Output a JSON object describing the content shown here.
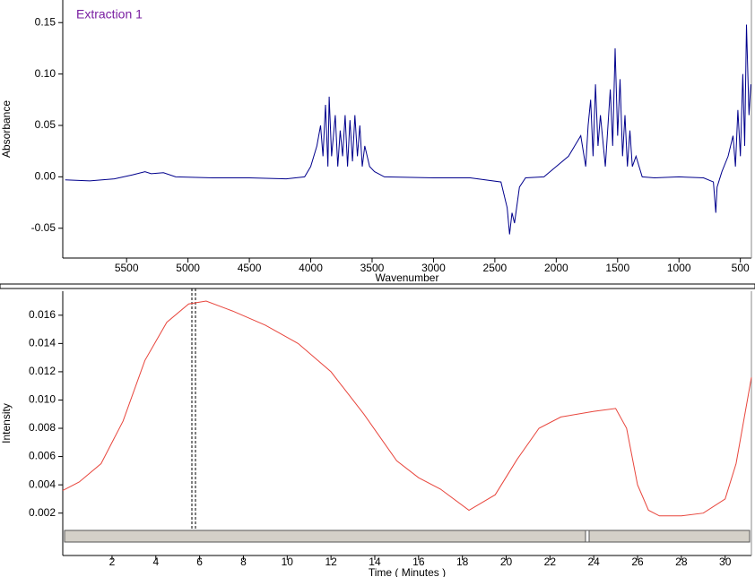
{
  "chart_data": [
    {
      "type": "line",
      "title": "Extraction 1",
      "x_label": "Wavenumber",
      "y_label": "Absorbance",
      "xlim": [
        6020,
        410
      ],
      "ylim": [
        -0.079,
        0.172
      ],
      "xticks": [
        5500,
        5000,
        4500,
        4000,
        3500,
        3000,
        2500,
        2000,
        1500,
        1000,
        500
      ],
      "yticks": [
        -0.05,
        {
          "value": 0,
          "label": "0.00"
        },
        0.05,
        {
          "value": 0.1,
          "label": "0.10"
        },
        0.15
      ],
      "series": [
        {
          "color": "#00008c",
          "x": [
            6000,
            5800,
            5600,
            5450,
            5350,
            5300,
            5200,
            5100,
            4800,
            4500,
            4200,
            4050,
            4000,
            3950,
            3920,
            3900,
            3880,
            3860,
            3850,
            3830,
            3800,
            3780,
            3760,
            3740,
            3720,
            3700,
            3680,
            3660,
            3640,
            3620,
            3600,
            3580,
            3560,
            3520,
            3480,
            3400,
            3000,
            2700,
            2450,
            2400,
            2380,
            2360,
            2340,
            2300,
            2250,
            2100,
            2000,
            1900,
            1850,
            1800,
            1760,
            1740,
            1720,
            1700,
            1680,
            1660,
            1640,
            1600,
            1560,
            1540,
            1520,
            1500,
            1480,
            1460,
            1440,
            1420,
            1400,
            1380,
            1350,
            1300,
            1200,
            1000,
            800,
            720,
            700,
            690,
            650,
            600,
            560,
            540,
            520,
            500,
            480,
            465,
            450,
            430,
            415
          ],
          "values": [
            -0.003,
            -0.004,
            -0.002,
            0.002,
            0.005,
            0.003,
            0.004,
            0.0,
            -0.001,
            -0.001,
            -0.002,
            0.0,
            0.01,
            0.03,
            0.05,
            0.02,
            0.07,
            0.01,
            0.078,
            0.02,
            0.06,
            0.01,
            0.045,
            0.02,
            0.06,
            0.01,
            0.055,
            0.015,
            0.06,
            0.02,
            0.05,
            0.01,
            0.03,
            0.01,
            0.005,
            0.0,
            -0.001,
            -0.001,
            -0.005,
            -0.03,
            -0.056,
            -0.035,
            -0.045,
            -0.01,
            -0.001,
            0.0,
            0.01,
            0.02,
            0.03,
            0.04,
            0.01,
            0.05,
            0.075,
            0.02,
            0.09,
            0.03,
            0.06,
            0.01,
            0.085,
            0.03,
            0.125,
            0.04,
            0.095,
            0.02,
            0.06,
            0.01,
            0.045,
            0.01,
            0.02,
            0.0,
            -0.001,
            0.0,
            -0.001,
            -0.005,
            -0.035,
            -0.01,
            0.005,
            0.02,
            0.04,
            0.01,
            0.065,
            0.02,
            0.1,
            0.03,
            0.148,
            0.06,
            0.09
          ]
        }
      ]
    },
    {
      "type": "line",
      "x_label": "Time ( Minutes )",
      "y_label": "Intensity",
      "xlim": [
        -0.25,
        31.2
      ],
      "ylim": [
        -0.001,
        0.0177
      ],
      "xticks": [
        2,
        4,
        6,
        8,
        10,
        12,
        14,
        16,
        18,
        20,
        22,
        24,
        26,
        28,
        30
      ],
      "yticks": [
        0.002,
        0.004,
        0.006,
        0.008,
        {
          "value": 0.01,
          "label": "0.010"
        },
        0.012,
        0.014,
        0.016
      ],
      "series": [
        {
          "color": "#e8453c",
          "x": [
            -0.25,
            0.5,
            1.5,
            2.5,
            3.5,
            4.5,
            5.5,
            6.3,
            7.5,
            9,
            10.5,
            12,
            13.5,
            15,
            16,
            17,
            18.3,
            19.5,
            20.5,
            21.5,
            22.5,
            24,
            25,
            25.5,
            26,
            26.5,
            27,
            28,
            29,
            30,
            30.5,
            31.2
          ],
          "values": [
            0.0036,
            0.0042,
            0.0055,
            0.0085,
            0.0128,
            0.0155,
            0.0168,
            0.017,
            0.0163,
            0.0153,
            0.014,
            0.012,
            0.009,
            0.0057,
            0.0045,
            0.0037,
            0.0022,
            0.0033,
            0.0058,
            0.008,
            0.0088,
            0.0092,
            0.0094,
            0.008,
            0.004,
            0.0022,
            0.0018,
            0.0018,
            0.002,
            0.003,
            0.0055,
            0.0116
          ]
        }
      ]
    }
  ]
}
